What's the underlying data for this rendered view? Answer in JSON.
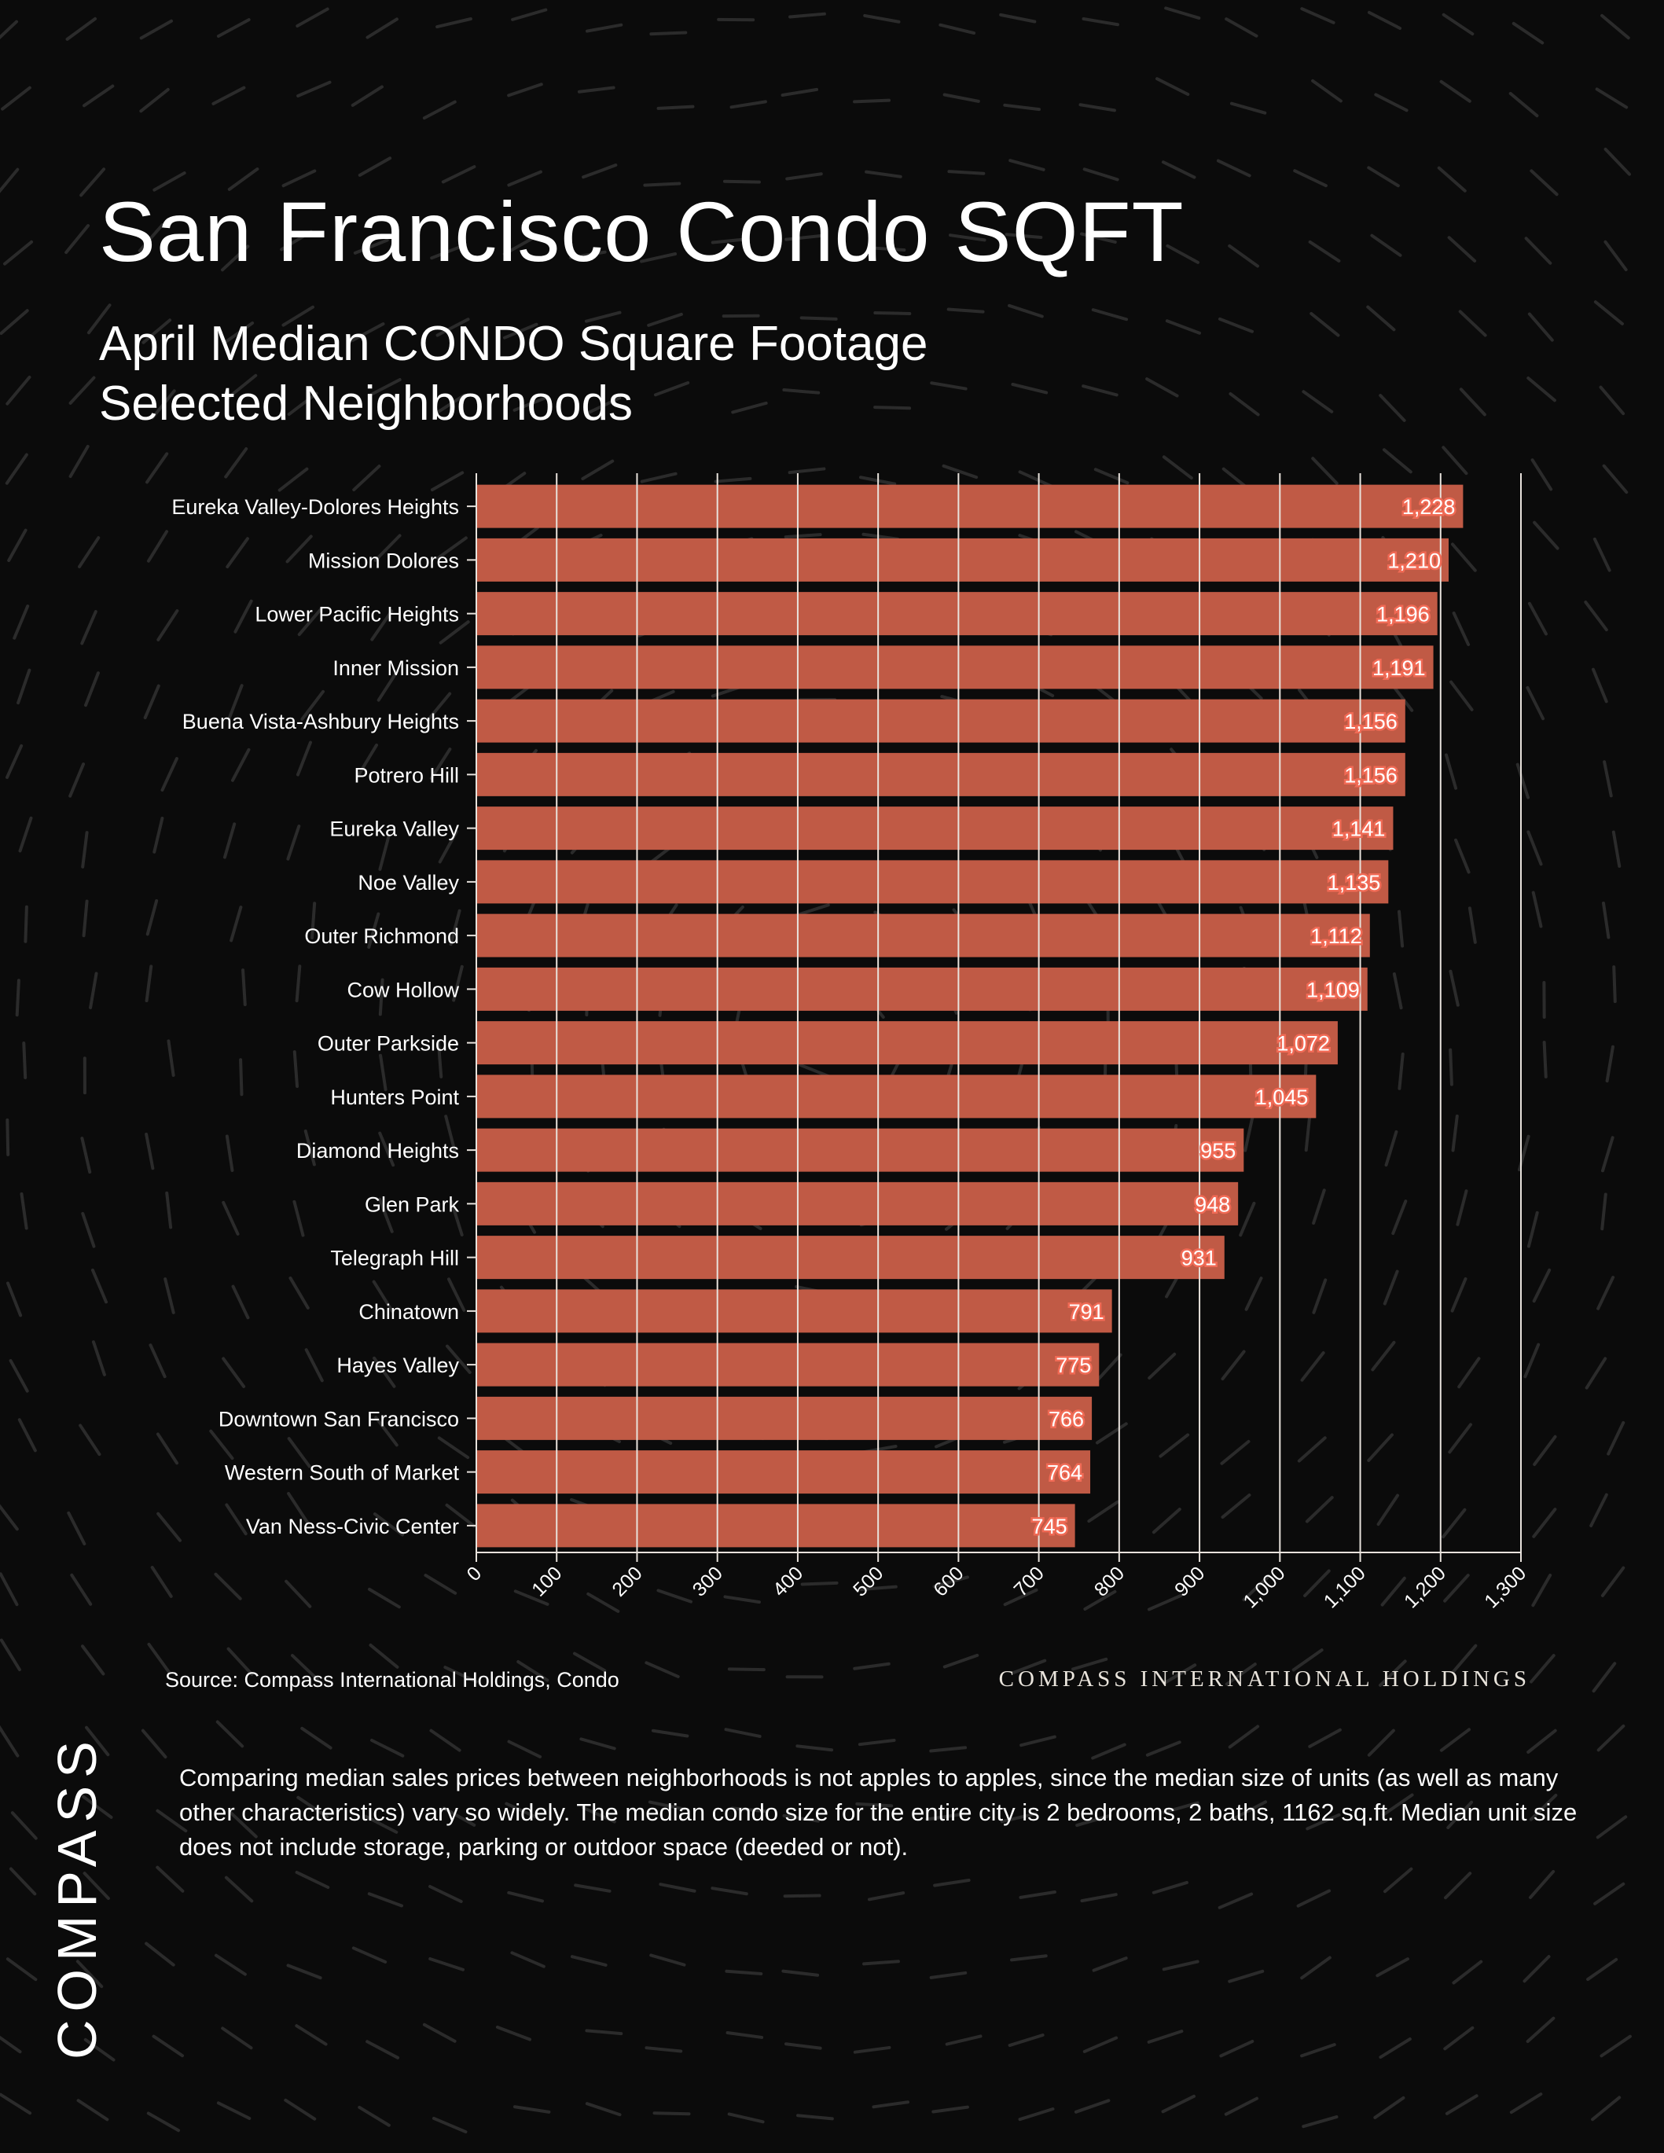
{
  "header": {
    "title": "San Francisco Condo SQFT",
    "subtitle_line1": "April Median CONDO Square Footage",
    "subtitle_line2": "Selected Neighborhoods"
  },
  "footer": {
    "source": "Source: Compass International Holdings, Condo",
    "brand": "COMPASS INTERNATIONAL HOLDINGS",
    "logo": "COMPASS",
    "note": "Comparing median sales prices between neighborhoods is not apples to apples, since the median size of units (as well as many other characteristics) vary so widely. The median condo size for the entire city is 2 bedrooms, 2 baths, 1162 sq.ft. Median unit size does not include storage, parking or outdoor space (deeded or not)."
  },
  "colors": {
    "background": "#0b0b0b",
    "bar": "#c05a45",
    "bar_label_outline": "#f06a55",
    "grid": "#e8e2dc",
    "text": "#ffffff"
  },
  "chart_data": {
    "type": "bar",
    "orientation": "horizontal",
    "categories": [
      "Eureka Valley-Dolores Heights",
      "Mission Dolores",
      "Lower Pacific Heights",
      "Inner Mission",
      "Buena Vista-Ashbury Heights",
      "Potrero Hill",
      "Eureka Valley",
      "Noe Valley",
      "Outer Richmond",
      "Cow Hollow",
      "Outer Parkside",
      "Hunters Point",
      "Diamond Heights",
      "Glen Park",
      "Telegraph Hill",
      "Chinatown",
      "Hayes Valley",
      "Downtown San Francisco",
      "Western South of Market",
      "Van Ness-Civic Center"
    ],
    "values": [
      1228,
      1210,
      1196,
      1191,
      1156,
      1156,
      1141,
      1135,
      1112,
      1109,
      1072,
      1045,
      955,
      948,
      931,
      791,
      775,
      766,
      764,
      745
    ],
    "value_labels": [
      "1,228",
      "1,210",
      "1,196",
      "1,191",
      "1,156",
      "1,156",
      "1,141",
      "1,135",
      "1,112",
      "1,109",
      "1,072",
      "1,045",
      "955",
      "948",
      "931",
      "791",
      "775",
      "766",
      "764",
      "745"
    ],
    "xlim": [
      0,
      1300
    ],
    "xticks": [
      0,
      100,
      200,
      300,
      400,
      500,
      600,
      700,
      800,
      900,
      1000,
      1100,
      1200,
      1300
    ],
    "xtick_labels": [
      "0",
      "100",
      "200",
      "300",
      "400",
      "500",
      "600",
      "700",
      "800",
      "900",
      "1,000",
      "1,100",
      "1,200",
      "1,300"
    ],
    "grid": true
  }
}
